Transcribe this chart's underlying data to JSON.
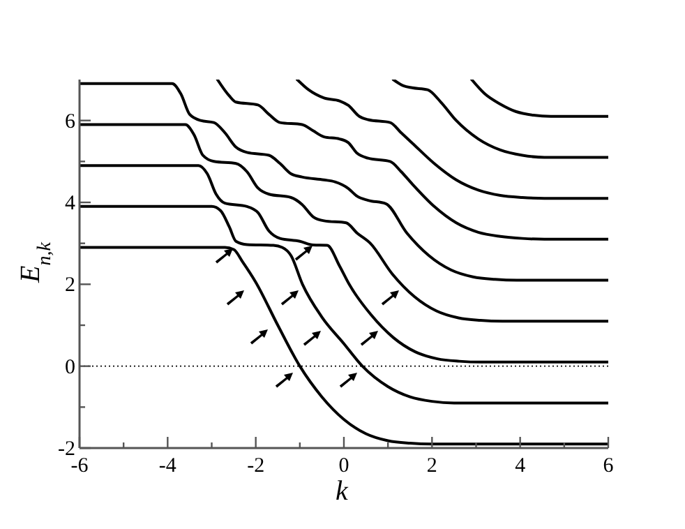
{
  "chart_data": {
    "type": "line",
    "xlabel": "k",
    "ylabel": "E$_{n,k}$",
    "xlim": [
      -6,
      6
    ],
    "ylim": [
      -2,
      7
    ],
    "xticks": [
      -6,
      {
        "value": -5,
        "label": null
      },
      -4,
      {
        "value": -3,
        "label": null
      },
      -2,
      {
        "value": -1,
        "label": null
      },
      0,
      {
        "value": 1,
        "label": null
      },
      2,
      {
        "value": 3,
        "label": null
      },
      4,
      {
        "value": 5,
        "label": null
      },
      6
    ],
    "yticks": [
      -2,
      {
        "value": -1,
        "label": null
      },
      0,
      {
        "value": 1,
        "label": null
      },
      2,
      {
        "value": 3,
        "label": null
      },
      4,
      {
        "value": 5,
        "label": null
      },
      6
    ],
    "ref_lines": [
      {
        "axis": "y",
        "value": 0,
        "line_style": "dotted",
        "color": "#000000"
      }
    ],
    "series": [
      {
        "color": "#000000",
        "x": [
          -6,
          -2.7,
          -2.5,
          -2.3,
          -2,
          -1.5,
          -1,
          -0.5,
          0,
          0.5,
          1,
          1.5,
          2,
          6
        ],
        "values": [
          2.9,
          2.9,
          2.85,
          2.55,
          2.05,
          1.0,
          0,
          -0.75,
          -1.3,
          -1.65,
          -1.82,
          -1.88,
          -1.9,
          -1.9
        ]
      },
      {
        "color": "#000000",
        "x": [
          -6,
          -3.0,
          -2.8,
          -2.6,
          -2.45,
          -2.2,
          -1.6,
          -1.4,
          -1.2,
          -0.94,
          -0.5,
          0,
          0.42,
          1,
          1.5,
          2,
          2.5,
          6
        ],
        "values": [
          3.9,
          3.9,
          3.8,
          3.4,
          3.05,
          2.97,
          2.95,
          2.9,
          2.7,
          2.0,
          1.2,
          0.55,
          0,
          -0.5,
          -0.75,
          -0.86,
          -0.9,
          -0.9
        ]
      },
      {
        "color": "#000000",
        "x": [
          -6,
          -3.3,
          -3.1,
          -2.9,
          -2.7,
          -2.2,
          -1.95,
          -1.7,
          -1.45,
          -1.0,
          -0.7,
          -0.38,
          -0.1,
          0.12,
          0.62,
          1.12,
          1.62,
          2.12,
          2.62,
          3.12,
          6
        ],
        "values": [
          4.9,
          4.9,
          4.7,
          4.2,
          3.98,
          3.9,
          3.75,
          3.3,
          3.12,
          3.05,
          2.96,
          2.95,
          2.45,
          2.0,
          1.25,
          0.7,
          0.35,
          0.18,
          0.12,
          0.1,
          0.1
        ]
      },
      {
        "color": "#000000",
        "x": [
          -6,
          -3.6,
          -3.4,
          -3.2,
          -2.95,
          -2.45,
          -2.2,
          -1.95,
          -1.7,
          -1.2,
          -0.95,
          -0.7,
          -0.45,
          0.05,
          0.3,
          0.6,
          1.1,
          1.6,
          2.1,
          2.6,
          3.1,
          3.6,
          6
        ],
        "values": [
          5.9,
          5.9,
          5.65,
          5.15,
          5.0,
          4.95,
          4.75,
          4.35,
          4.2,
          4.12,
          3.95,
          3.65,
          3.55,
          3.5,
          3.25,
          3.0,
          2.25,
          1.7,
          1.35,
          1.18,
          1.12,
          1.1,
          1.1
        ]
      },
      {
        "color": "#000000",
        "x": [
          -6,
          -3.9,
          -3.7,
          -3.5,
          -3.25,
          -2.95,
          -2.7,
          -2.45,
          -2.2,
          -1.7,
          -1.45,
          -1.2,
          -0.95,
          -0.45,
          -0.2,
          0.1,
          0.3,
          0.55,
          0.95,
          1.43,
          1.93,
          2.43,
          2.93,
          3.43,
          3.93,
          6
        ],
        "values": [
          6.9,
          6.9,
          6.65,
          6.15,
          6.0,
          5.95,
          5.7,
          5.35,
          5.22,
          5.15,
          4.95,
          4.7,
          4.62,
          4.55,
          4.5,
          4.34,
          4.15,
          4.05,
          3.97,
          3.25,
          2.7,
          2.35,
          2.18,
          2.12,
          2.1,
          2.1
        ]
      },
      {
        "color": "#000000",
        "x": [
          -2.87,
          -2.6,
          -2.45,
          -1.95,
          -1.7,
          -1.45,
          -0.95,
          -0.7,
          -0.45,
          -0.1,
          0.1,
          0.3,
          0.55,
          1.05,
          1.3,
          1.55,
          2.05,
          2.55,
          3.05,
          3.55,
          4.05,
          4.55,
          6
        ],
        "values": [
          7,
          6.6,
          6.45,
          6.38,
          6.15,
          5.95,
          5.9,
          5.75,
          5.6,
          5.55,
          5.46,
          5.2,
          5.08,
          5.0,
          4.75,
          4.45,
          3.9,
          3.5,
          3.27,
          3.17,
          3.12,
          3.1,
          3.1
        ]
      },
      {
        "color": "#000000",
        "x": [
          -1.06,
          -0.8,
          -0.45,
          -0.1,
          0.1,
          0.35,
          0.55,
          1.05,
          1.3,
          1.55,
          2.05,
          2.55,
          3.05,
          3.55,
          4.05,
          4.55,
          6
        ],
        "values": [
          7,
          6.75,
          6.55,
          6.48,
          6.37,
          6.1,
          6.02,
          5.95,
          5.7,
          5.45,
          4.95,
          4.55,
          4.3,
          4.17,
          4.12,
          4.1,
          4.1
        ]
      },
      {
        "color": "#000000",
        "x": [
          1.12,
          1.35,
          1.55,
          1.9,
          2.2,
          2.55,
          3.05,
          3.55,
          4.05,
          4.55,
          6
        ],
        "values": [
          7,
          6.85,
          6.8,
          6.75,
          6.45,
          6.0,
          5.55,
          5.28,
          5.15,
          5.1,
          5.1
        ]
      },
      {
        "color": "#000000",
        "x": [
          2.9,
          3.2,
          3.55,
          3.9,
          4.3,
          4.7,
          6
        ],
        "values": [
          7,
          6.65,
          6.4,
          6.22,
          6.13,
          6.1,
          6.1
        ]
      }
    ]
  }
}
